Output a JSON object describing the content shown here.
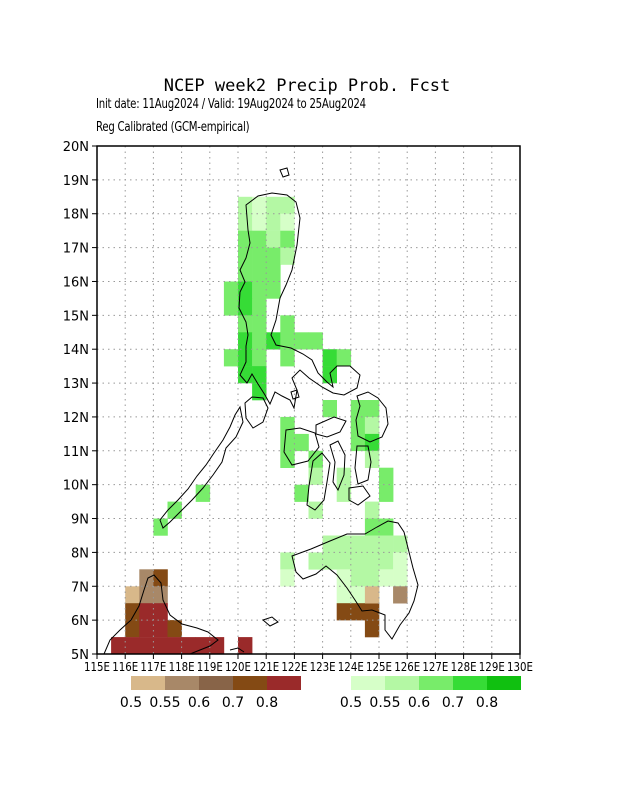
{
  "title": "NCEP week2 Precip Prob. Fcst",
  "subtitle_line1": "Init date: 11Aug2024 / Valid: 19Aug2024 to 25Aug2024",
  "subtitle_line2": "Reg Calibrated (GCM-empirical)",
  "lat_labels": [
    "5N",
    "6N",
    "7N",
    "8N",
    "9N",
    "10N",
    "11N",
    "12N",
    "13N",
    "14N",
    "15N",
    "16N",
    "17N",
    "18N",
    "19N",
    "20N"
  ],
  "lon_labels": [
    "115E",
    "116E",
    "117E",
    "118E",
    "119E",
    "120E",
    "121E",
    "122E",
    "123E",
    "124E",
    "125E",
    "126E",
    "127E",
    "128E",
    "129E",
    "130E"
  ],
  "dry_legend": {
    "colors": [
      "#d8b88a",
      "#a88868",
      "#886448",
      "#844a14",
      "#9a2a2a"
    ],
    "labels": [
      "0.5",
      "0.55",
      "0.6",
      "0.7",
      "0.8"
    ]
  },
  "wet_legend": {
    "colors": [
      "#d6ffc8",
      "#b4f8a4",
      "#78ec6a",
      "#36dc36",
      "#10c010"
    ],
    "labels": [
      "0.5",
      "0.55",
      "0.6",
      "0.7",
      "0.8"
    ]
  },
  "map_data": {
    "lon_range": [
      115,
      130
    ],
    "lat_range": [
      5,
      20
    ],
    "grid_step": 0.5,
    "wet_cells": [
      [
        120,
        18,
        1
      ],
      [
        120.5,
        18,
        0
      ],
      [
        121,
        18,
        1
      ],
      [
        121.5,
        18,
        1
      ],
      [
        120,
        17.5,
        1
      ],
      [
        120.5,
        17.5,
        0
      ],
      [
        121,
        17.5,
        1
      ],
      [
        121.5,
        17.5,
        0
      ],
      [
        120,
        17,
        2
      ],
      [
        120.5,
        17,
        2
      ],
      [
        121,
        17,
        1
      ],
      [
        121.5,
        17,
        2
      ],
      [
        120,
        16.5,
        2
      ],
      [
        120.5,
        16.5,
        2
      ],
      [
        121,
        16.5,
        2
      ],
      [
        121.5,
        16.5,
        1
      ],
      [
        120,
        16,
        2
      ],
      [
        120.5,
        16,
        2
      ],
      [
        121,
        16,
        2
      ],
      [
        119.5,
        15.5,
        2
      ],
      [
        120,
        15.5,
        3
      ],
      [
        120.5,
        15.5,
        2
      ],
      [
        121,
        15.5,
        2
      ],
      [
        119.5,
        15,
        2
      ],
      [
        120,
        15,
        3
      ],
      [
        120.5,
        15,
        2
      ],
      [
        120,
        14.5,
        2
      ],
      [
        120.5,
        14.5,
        2
      ],
      [
        121.5,
        14.5,
        2
      ],
      [
        120,
        14,
        3
      ],
      [
        120.5,
        14,
        2
      ],
      [
        121,
        14,
        3
      ],
      [
        121.5,
        14,
        2
      ],
      [
        122,
        14,
        2
      ],
      [
        122.5,
        14,
        2
      ],
      [
        119.5,
        13.5,
        2
      ],
      [
        120,
        13.5,
        3
      ],
      [
        120.5,
        13.5,
        2
      ],
      [
        121.5,
        13.5,
        2
      ],
      [
        123,
        13.5,
        3
      ],
      [
        123.5,
        13.5,
        2
      ],
      [
        120,
        13,
        3
      ],
      [
        120.5,
        13,
        3
      ],
      [
        123,
        13,
        3
      ],
      [
        120.5,
        12.5,
        3
      ],
      [
        123,
        12,
        2
      ],
      [
        124,
        12,
        2
      ],
      [
        124.5,
        12,
        2
      ],
      [
        121.5,
        11.5,
        2
      ],
      [
        124,
        11.5,
        2
      ],
      [
        124.5,
        11.5,
        1
      ],
      [
        121.5,
        11,
        2
      ],
      [
        122,
        11,
        2
      ],
      [
        124,
        11,
        2
      ],
      [
        124.5,
        11,
        3
      ],
      [
        121.5,
        10.5,
        2
      ],
      [
        122.5,
        10.5,
        2
      ],
      [
        124.5,
        10.5,
        1
      ],
      [
        122.5,
        10,
        1
      ],
      [
        123.5,
        10,
        1
      ],
      [
        125,
        10,
        2
      ],
      [
        118.5,
        9.5,
        2
      ],
      [
        122,
        9.5,
        2
      ],
      [
        123.5,
        9.5,
        1
      ],
      [
        125,
        9.5,
        2
      ],
      [
        117.5,
        9,
        2
      ],
      [
        122.5,
        9,
        1
      ],
      [
        124.5,
        9,
        1
      ],
      [
        117,
        8.5,
        2
      ],
      [
        124.5,
        8.5,
        2
      ],
      [
        125,
        8.5,
        2
      ],
      [
        123,
        8,
        1
      ],
      [
        123.5,
        8,
        1
      ],
      [
        124,
        8,
        1
      ],
      [
        124.5,
        8,
        1
      ],
      [
        125,
        8,
        1
      ],
      [
        125.5,
        8,
        1
      ],
      [
        121.5,
        7.5,
        1
      ],
      [
        122.5,
        7.5,
        1
      ],
      [
        123,
        7.5,
        1
      ],
      [
        123.5,
        7.5,
        1
      ],
      [
        124,
        7.5,
        1
      ],
      [
        124.5,
        7.5,
        1
      ],
      [
        125,
        7.5,
        1
      ],
      [
        125.5,
        7.5,
        0
      ],
      [
        121.5,
        7,
        0
      ],
      [
        123.5,
        7,
        0
      ],
      [
        124,
        7,
        1
      ],
      [
        124.5,
        7,
        1
      ],
      [
        125,
        7,
        0
      ],
      [
        125.5,
        7,
        0
      ],
      [
        123.5,
        6.5,
        0
      ],
      [
        124,
        6.5,
        0
      ],
      [
        124.5,
        6.5,
        0
      ],
      [
        125.5,
        6.5,
        0
      ]
    ],
    "dry_cells": [
      [
        116.5,
        7,
        1
      ],
      [
        117,
        7,
        3
      ],
      [
        116,
        6.5,
        0
      ],
      [
        116.5,
        6.5,
        1
      ],
      [
        117,
        6.5,
        1
      ],
      [
        116,
        6,
        3
      ],
      [
        116.5,
        6,
        4
      ],
      [
        117,
        6,
        4
      ],
      [
        116,
        5.5,
        3
      ],
      [
        116.5,
        5.5,
        4
      ],
      [
        117,
        5.5,
        4
      ],
      [
        117.5,
        5.5,
        3
      ],
      [
        115.5,
        5,
        4
      ],
      [
        116,
        5,
        4
      ],
      [
        116.5,
        5,
        4
      ],
      [
        117,
        5,
        4
      ],
      [
        117.5,
        5,
        4
      ],
      [
        118,
        5,
        4
      ],
      [
        118.5,
        5,
        4
      ],
      [
        119,
        5,
        4
      ],
      [
        120,
        5,
        4
      ],
      [
        123.5,
        6,
        3
      ],
      [
        124,
        6,
        3
      ],
      [
        124.5,
        6,
        3
      ],
      [
        124.5,
        5.5,
        3
      ],
      [
        124.5,
        6.5,
        0
      ],
      [
        125.5,
        6.5,
        1
      ]
    ]
  }
}
